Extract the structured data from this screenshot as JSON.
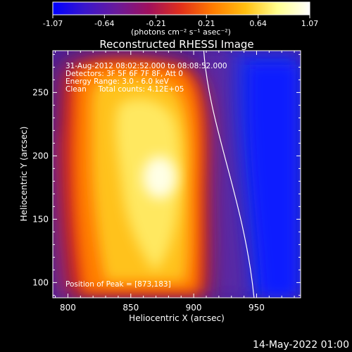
{
  "chart_data": {
    "type": "heatmap",
    "title": "Reconstructed RHESSI Image",
    "xlabel": "Heliocentric X (arcsec)",
    "ylabel": "Heliocentric Y (arcsec)",
    "xlim": [
      788,
      985
    ],
    "ylim": [
      88,
      283
    ],
    "x_ticks": [
      800,
      850,
      900,
      950
    ],
    "y_ticks": [
      100,
      150,
      200,
      250
    ],
    "peak": [
      873,
      183
    ],
    "peak_label": "Position of Peak = [873,183]",
    "annotations": [
      "31-Aug-2012 08:02:52.000 to 08:08:52.000",
      "Detectors: 3F 5F 6F 7F 8F, Att 0",
      "Energy Range: 3.0 - 6.0 keV",
      "Clean     Total counts: 4.12E+05"
    ],
    "colorbar": {
      "min": -1.07,
      "max": 1.07,
      "ticks": [
        -1.07,
        -0.64,
        -0.21,
        0.21,
        0.64,
        1.07
      ],
      "tick_labels": [
        "-1.07",
        "-0.64",
        "-0.21",
        "0.21",
        "0.64",
        "1.07"
      ],
      "label": "(photons cm⁻² s⁻¹ asec⁻²)",
      "colors": [
        "#0000ff",
        "#3a16cc",
        "#6a1a9a",
        "#a0105c",
        "#e2301a",
        "#ff7d00",
        "#ffbf10",
        "#ffff90",
        "#ffffff"
      ]
    },
    "limb_x_at_top": 908,
    "limb_x_at_bottom": 948
  },
  "footer": {
    "timestamp": "14-May-2022 01:00"
  }
}
